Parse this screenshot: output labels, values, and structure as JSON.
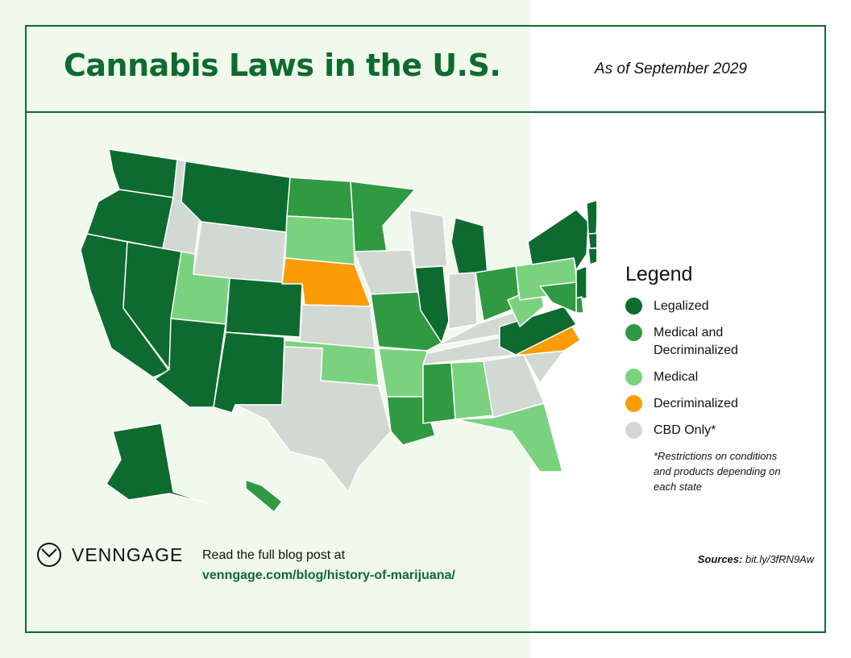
{
  "header": {
    "title": "Cannabis Laws in the U.S.",
    "date_note": "As of September 2029"
  },
  "legend": {
    "title": "Legend",
    "items": [
      {
        "label": "Legalized",
        "color": "#0d6b2f"
      },
      {
        "label": "Medical and Decriminalized",
        "color": "#2f9a41"
      },
      {
        "label": "Medical",
        "color": "#7ad27f"
      },
      {
        "label": "Decriminalized",
        "color": "#fb9b05"
      },
      {
        "label": "CBD Only*",
        "color": "#d2d8d2"
      }
    ],
    "footnote": "*Restrictions on conditions and products depending on each state"
  },
  "map_data": {
    "categories": {
      "legalized": "#0d6b2f",
      "medical_decriminalized": "#2f9a41",
      "medical": "#7ad27f",
      "decriminalized": "#fb9b05",
      "cbd_only": "#d2d8d2"
    },
    "states": [
      {
        "id": "WA",
        "category": "legalized"
      },
      {
        "id": "OR",
        "category": "legalized"
      },
      {
        "id": "CA",
        "category": "legalized"
      },
      {
        "id": "NV",
        "category": "legalized"
      },
      {
        "id": "ID",
        "category": "cbd_only"
      },
      {
        "id": "MT",
        "category": "legalized"
      },
      {
        "id": "WY",
        "category": "cbd_only"
      },
      {
        "id": "UT",
        "category": "medical"
      },
      {
        "id": "AZ",
        "category": "legalized"
      },
      {
        "id": "CO",
        "category": "legalized"
      },
      {
        "id": "NM",
        "category": "legalized"
      },
      {
        "id": "ND",
        "category": "medical_decriminalized"
      },
      {
        "id": "SD",
        "category": "medical"
      },
      {
        "id": "NE",
        "category": "decriminalized"
      },
      {
        "id": "KS",
        "category": "cbd_only"
      },
      {
        "id": "OK",
        "category": "medical"
      },
      {
        "id": "TX",
        "category": "cbd_only"
      },
      {
        "id": "MN",
        "category": "medical_decriminalized"
      },
      {
        "id": "IA",
        "category": "cbd_only"
      },
      {
        "id": "MO",
        "category": "medical_decriminalized"
      },
      {
        "id": "AR",
        "category": "medical"
      },
      {
        "id": "LA",
        "category": "medical_decriminalized"
      },
      {
        "id": "WI",
        "category": "cbd_only"
      },
      {
        "id": "IL",
        "category": "legalized"
      },
      {
        "id": "MI",
        "category": "legalized"
      },
      {
        "id": "IN",
        "category": "cbd_only"
      },
      {
        "id": "OH",
        "category": "medical_decriminalized"
      },
      {
        "id": "KY",
        "category": "cbd_only"
      },
      {
        "id": "TN",
        "category": "cbd_only"
      },
      {
        "id": "MS",
        "category": "medical_decriminalized"
      },
      {
        "id": "AL",
        "category": "medical"
      },
      {
        "id": "GA",
        "category": "cbd_only"
      },
      {
        "id": "FL",
        "category": "medical"
      },
      {
        "id": "SC",
        "category": "cbd_only"
      },
      {
        "id": "NC",
        "category": "decriminalized"
      },
      {
        "id": "VA",
        "category": "legalized"
      },
      {
        "id": "WV",
        "category": "medical"
      },
      {
        "id": "PA",
        "category": "medical"
      },
      {
        "id": "NY",
        "category": "legalized"
      },
      {
        "id": "VT",
        "category": "legalized"
      },
      {
        "id": "NH",
        "category": "medical_decriminalized"
      },
      {
        "id": "ME",
        "category": "legalized"
      },
      {
        "id": "MA",
        "category": "legalized"
      },
      {
        "id": "CT",
        "category": "legalized"
      },
      {
        "id": "RI",
        "category": "legalized"
      },
      {
        "id": "NJ",
        "category": "legalized"
      },
      {
        "id": "DE",
        "category": "medical_decriminalized"
      },
      {
        "id": "MD",
        "category": "medical_decriminalized"
      },
      {
        "id": "AK",
        "category": "legalized"
      },
      {
        "id": "HI",
        "category": "medical_decriminalized"
      }
    ]
  },
  "footer": {
    "brand": "VENNGAGE",
    "blog_text": "Read the full blog post at",
    "blog_link": "venngage.com/blog/history-of-marijuana/",
    "sources_label": "Sources:",
    "sources_value": "bit.ly/3fRN9Aw"
  }
}
